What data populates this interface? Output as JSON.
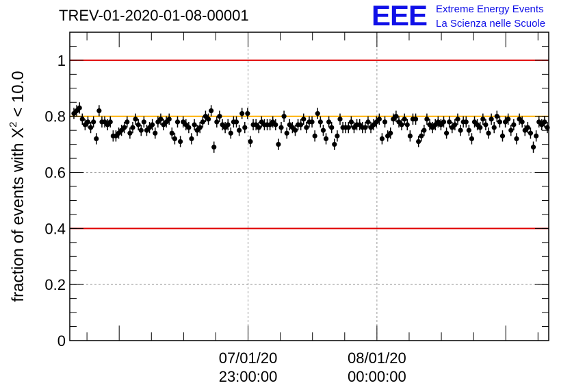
{
  "title": "TREV-01-2020-01-08-00001",
  "logo": {
    "mark": "EEE",
    "line1": "Extreme Energy Events",
    "line2": "La Scienza nelle Scuole"
  },
  "colors": {
    "reference_lines": "#e00000",
    "mean_line": "#ffb000",
    "points": "#000000",
    "grid": "#999999",
    "logo": "#1010e8"
  },
  "chart_data": {
    "type": "scatter",
    "title": "TREV-01-2020-01-08-00001",
    "xlabel": "",
    "ylabel": "fraction of events with X² < 10.0",
    "ylabel_parts": {
      "prefix": "fraction of events with ",
      "symbol": "X",
      "sup": "2",
      "suffix": " < 10.0"
    },
    "ylim": [
      0,
      1.1
    ],
    "yticks": [
      "0",
      "0.2",
      "0.4",
      "0.6",
      "0.8",
      "1"
    ],
    "xlim": [
      "2020-01-07 21:37",
      "2020-01-08 01:20"
    ],
    "xticks": [
      {
        "date": "07/01/20",
        "time": "23:00:00",
        "x": "2020-01-07 23:00"
      },
      {
        "date": "08/01/20",
        "time": "00:00:00",
        "x": "2020-01-08 00:00"
      }
    ],
    "grid": true,
    "reference_lines": [
      {
        "y": 1.0,
        "color": "#e00000"
      },
      {
        "y": 0.4,
        "color": "#e00000"
      },
      {
        "y": 0.8,
        "color": "#ffb000"
      }
    ],
    "error_bar": 0.02,
    "series": [
      {
        "values": [
          0.81,
          0.82,
          0.83,
          0.79,
          0.77,
          0.78,
          0.76,
          0.78,
          0.72,
          0.82,
          0.78,
          0.78,
          0.77,
          0.78,
          0.73,
          0.73,
          0.74,
          0.75,
          0.76,
          0.78,
          0.74,
          0.76,
          0.79,
          0.77,
          0.75,
          0.78,
          0.75,
          0.76,
          0.77,
          0.74,
          0.78,
          0.79,
          0.77,
          0.78,
          0.79,
          0.74,
          0.72,
          0.78,
          0.71,
          0.78,
          0.77,
          0.76,
          0.72,
          0.77,
          0.75,
          0.76,
          0.78,
          0.8,
          0.79,
          0.82,
          0.69,
          0.78,
          0.8,
          0.77,
          0.76,
          0.77,
          0.74,
          0.78,
          0.78,
          0.75,
          0.81,
          0.76,
          0.81,
          0.71,
          0.77,
          0.77,
          0.76,
          0.78,
          0.77,
          0.77,
          0.77,
          0.78,
          0.77,
          0.7,
          0.76,
          0.8,
          0.74,
          0.77,
          0.76,
          0.75,
          0.77,
          0.77,
          0.79,
          0.76,
          0.78,
          0.78,
          0.73,
          0.81,
          0.78,
          0.75,
          0.72,
          0.78,
          0.76,
          0.7,
          0.73,
          0.79,
          0.76,
          0.76,
          0.76,
          0.78,
          0.76,
          0.77,
          0.77,
          0.76,
          0.76,
          0.78,
          0.76,
          0.77,
          0.78,
          0.79,
          0.72,
          0.78,
          0.73,
          0.74,
          0.79,
          0.8,
          0.78,
          0.77,
          0.79,
          0.77,
          0.73,
          0.79,
          0.79,
          0.71,
          0.73,
          0.75,
          0.79,
          0.77,
          0.76,
          0.77,
          0.78,
          0.77,
          0.78,
          0.74,
          0.78,
          0.76,
          0.77,
          0.79,
          0.75,
          0.78,
          0.78,
          0.75,
          0.72,
          0.78,
          0.77,
          0.76,
          0.79,
          0.77,
          0.74,
          0.79,
          0.76,
          0.8,
          0.78,
          0.73,
          0.78,
          0.79,
          0.75,
          0.77,
          0.72,
          0.79,
          0.78,
          0.75,
          0.76,
          0.74,
          0.69,
          0.73,
          0.78,
          0.77,
          0.78,
          0.76
        ]
      }
    ]
  }
}
